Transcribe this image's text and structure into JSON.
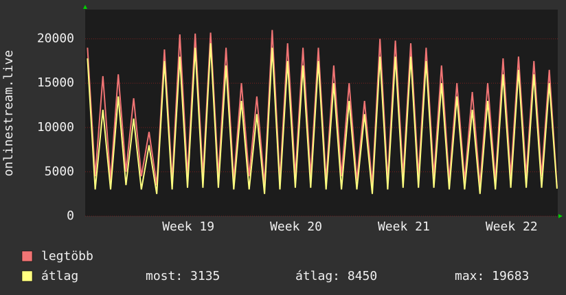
{
  "chart_data": {
    "type": "line",
    "y_label": "onlinestream.live",
    "x": [
      0.15,
      0.65,
      1.15,
      1.65,
      2.15,
      2.65,
      3.15,
      3.65,
      4.15,
      4.65,
      5.15,
      5.65,
      6.15,
      6.65,
      7.15,
      7.65,
      8.15,
      8.65,
      9.15,
      9.65,
      10.15,
      10.65,
      11.15,
      11.65,
      12.15,
      12.65,
      13.15,
      13.65,
      14.15,
      14.65,
      15.15,
      15.65,
      16.15,
      16.65,
      17.15,
      17.65,
      18.15,
      18.65,
      19.15,
      19.65,
      20.15,
      20.65,
      21.15,
      21.65,
      22.15,
      22.65,
      23.15,
      23.65,
      24.15,
      24.65,
      25.15,
      25.65,
      26.15,
      26.65,
      27.15,
      27.65,
      28.15,
      28.65,
      29.15,
      29.65,
      30.15,
      30.65
    ],
    "series": [
      {
        "name": "legtöbb",
        "color": "#f07474",
        "values": [
          19000,
          4500,
          15800,
          4000,
          16000,
          5000,
          13300,
          4500,
          9500,
          3500,
          18800,
          4000,
          20500,
          4500,
          20600,
          4500,
          20700,
          4500,
          19000,
          4000,
          15000,
          4500,
          13500,
          3500,
          21000,
          4000,
          19500,
          4500,
          19000,
          4500,
          19000,
          4000,
          17000,
          4500,
          15000,
          4000,
          13000,
          3500,
          20000,
          4000,
          19800,
          4500,
          19500,
          4500,
          19000,
          4500,
          17000,
          4000,
          15000,
          4000,
          14000,
          3500,
          15000,
          4000,
          17800,
          4500,
          18000,
          4500,
          17500,
          4500,
          16500,
          3300
        ]
      },
      {
        "name": "átlag",
        "color": "#ffff80",
        "values": [
          17800,
          3000,
          12000,
          3000,
          13500,
          3500,
          11000,
          3000,
          8000,
          2500,
          17500,
          3000,
          18000,
          3200,
          19000,
          3200,
          19500,
          3200,
          17000,
          3000,
          13000,
          3000,
          11500,
          2500,
          19000,
          3000,
          17500,
          3200,
          17000,
          3200,
          17500,
          3000,
          15000,
          3000,
          13000,
          3000,
          11500,
          2500,
          18000,
          3000,
          18000,
          3200,
          18000,
          3200,
          17500,
          3200,
          15000,
          3000,
          13500,
          3000,
          12000,
          2500,
          13000,
          3000,
          16000,
          3200,
          16500,
          3200,
          16000,
          3200,
          15000,
          3100
        ]
      }
    ],
    "xlim": [
      0,
      30.7
    ],
    "xticks": [
      {
        "value": 6.7,
        "label": "Week 19"
      },
      {
        "value": 13.7,
        "label": "Week 20"
      },
      {
        "value": 20.7,
        "label": "Week 21"
      },
      {
        "value": 27.7,
        "label": "Week 22"
      }
    ],
    "ylim": [
      0,
      23300
    ],
    "yticks": [
      0,
      5000,
      10000,
      15000,
      20000
    ],
    "grid": true,
    "summary": [
      "most: 3135",
      "átlag: 8450",
      "max: 19683"
    ]
  }
}
